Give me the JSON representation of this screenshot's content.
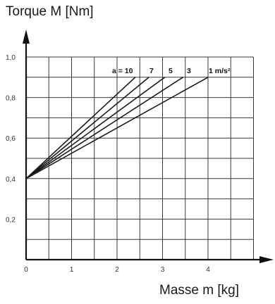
{
  "chart_data": {
    "type": "line",
    "title": "",
    "xlabel": "Masse m [kg]",
    "ylabel": "Torque M [Nm]",
    "xlim": [
      0,
      5
    ],
    "ylim": [
      0,
      1.0
    ],
    "x_ticks": [
      "0",
      "1",
      "2",
      "3",
      "4"
    ],
    "x_tick_values": [
      0,
      1,
      2,
      3,
      4
    ],
    "y_ticks": [
      "0,2",
      "0,4",
      "0,6",
      "0,8",
      "1,0"
    ],
    "y_tick_values": [
      0.2,
      0.4,
      0.6,
      0.8,
      1.0
    ],
    "grid": true,
    "series_label_prefix": "a = ",
    "series_unit": "m/s²",
    "series": [
      {
        "label": "10",
        "x": [
          0,
          2.4
        ],
        "y": [
          0.4,
          0.9
        ]
      },
      {
        "label": "7",
        "x": [
          0,
          2.7
        ],
        "y": [
          0.4,
          0.9
        ]
      },
      {
        "label": "5",
        "x": [
          0,
          3.05
        ],
        "y": [
          0.4,
          0.9
        ]
      },
      {
        "label": "3",
        "x": [
          0,
          3.45
        ],
        "y": [
          0.4,
          0.9
        ]
      },
      {
        "label": "1",
        "x": [
          0,
          4.0
        ],
        "y": [
          0.4,
          0.9
        ]
      }
    ],
    "series_annotation": [
      "a = 10",
      "7",
      "5",
      "3",
      "1 m/s²"
    ]
  }
}
